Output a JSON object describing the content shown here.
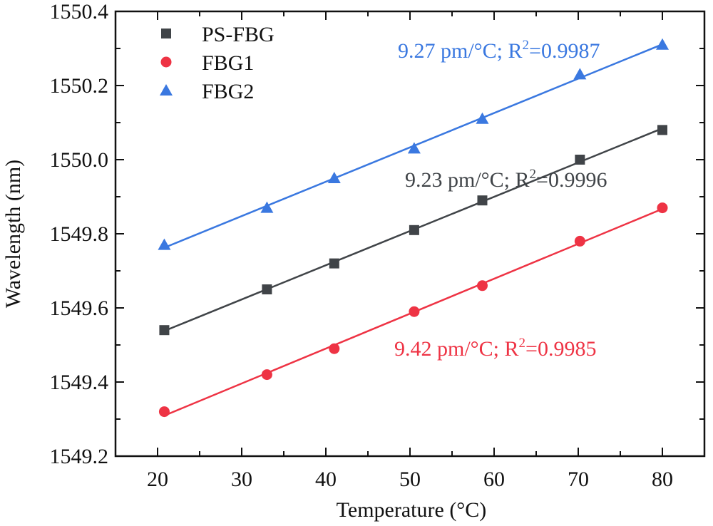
{
  "chart_data": {
    "type": "scatter",
    "xlabel": "Temperature (°C)",
    "ylabel": "Wavelength (nm)",
    "xlim": [
      15,
      85
    ],
    "ylim": [
      1549.2,
      1550.4
    ],
    "xticks": [
      20,
      30,
      40,
      50,
      60,
      70,
      80
    ],
    "yticks": [
      1549.2,
      1549.4,
      1549.6,
      1549.8,
      1550.0,
      1550.2,
      1550.4
    ],
    "ytick_labels": [
      "1549.2",
      "1549.4",
      "1549.6",
      "1549.8",
      "1550.0",
      "1550.2",
      "1550.4"
    ],
    "grid": false,
    "legend_position": "top-left",
    "series": [
      {
        "name": "PS-FBG",
        "marker": "square",
        "color": "#404448",
        "x": [
          20.8,
          33,
          41,
          50.5,
          58.6,
          70.2,
          80
        ],
        "y": [
          1549.54,
          1549.65,
          1549.72,
          1549.81,
          1549.89,
          1550.0,
          1550.08
        ],
        "fit_label": "9.23 pm/°C; R",
        "fit_r2": "0.9996"
      },
      {
        "name": "FBG1",
        "marker": "circle",
        "color": "#ee3344",
        "x": [
          20.8,
          33,
          41,
          50.5,
          58.6,
          70.2,
          80
        ],
        "y": [
          1549.32,
          1549.42,
          1549.49,
          1549.59,
          1549.66,
          1549.78,
          1549.87
        ],
        "fit_label": "9.42 pm/°C; R",
        "fit_r2": "0.9985"
      },
      {
        "name": "FBG2",
        "marker": "triangle",
        "color": "#3a78e0",
        "x": [
          20.8,
          33,
          41,
          50.5,
          58.6,
          70.2,
          80
        ],
        "y": [
          1549.77,
          1549.87,
          1549.95,
          1550.03,
          1550.11,
          1550.23,
          1550.31
        ],
        "fit_label": "9.27 pm/°C; R",
        "fit_r2": "0.9987"
      }
    ]
  }
}
